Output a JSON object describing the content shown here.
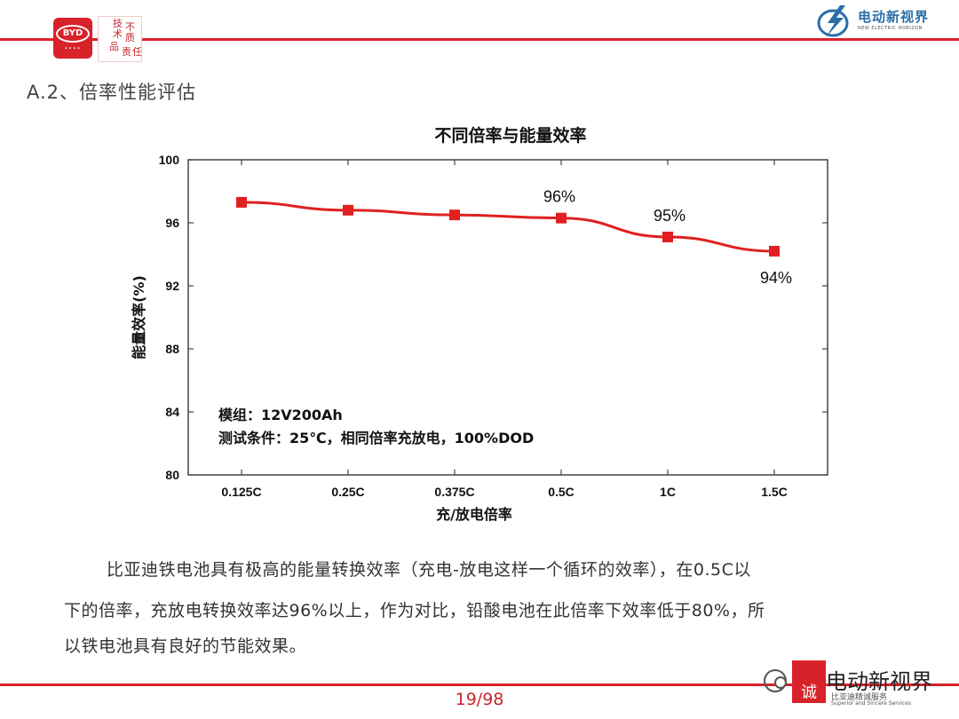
{
  "header": {
    "byd_logo_text": "BYD",
    "seal_chars": [
      "技",
      "不",
      "术",
      "品",
      "质",
      "责",
      "任"
    ],
    "brand_right_cn": "电动新视界",
    "brand_right_en": "NEW ELECTRIC HORIZON"
  },
  "section_title": "A.2、倍率性能评估",
  "chart_data": {
    "type": "line",
    "title": "不同倍率与能量效率",
    "xlabel": "充/放电倍率",
    "ylabel": "能量效率(%)",
    "categories": [
      "0.125C",
      "0.25C",
      "0.375C",
      "0.5C",
      "1C",
      "1.5C"
    ],
    "values": [
      97.3,
      96.8,
      96.5,
      96.3,
      95.1,
      94.2
    ],
    "ylim": [
      80,
      100
    ],
    "yticks": [
      80,
      84,
      88,
      92,
      96,
      100
    ],
    "point_labels": [
      {
        "index": 3,
        "text": "96%"
      },
      {
        "index": 4,
        "text": "95%"
      },
      {
        "index": 5,
        "text": "94%"
      }
    ],
    "line_color": "#e0201f",
    "grid": false,
    "annotation_lines": [
      "模组：12V200Ah",
      "测试条件：25℃，相同倍率充放电，100%DOD"
    ]
  },
  "paragraph_lines": [
    "比亚迪铁电池具有极高的能量转换效率（充电-放电这样一个循环的效率），在0.5C以",
    "下的倍率，充放电转换效率达96%以上，作为对比，铅酸电池在此倍率下效率低于80%，所",
    "以铁电池具有良好的节能效果。"
  ],
  "footer": {
    "page_number": "19/98",
    "watermark_text": "电动新视界",
    "watermark_stamp": "诚",
    "watermark_sub_cn": "比亚迪精诚服务",
    "watermark_sub_en": "Superior and Sincere Services"
  },
  "colors": {
    "accent": "#d8222a"
  }
}
